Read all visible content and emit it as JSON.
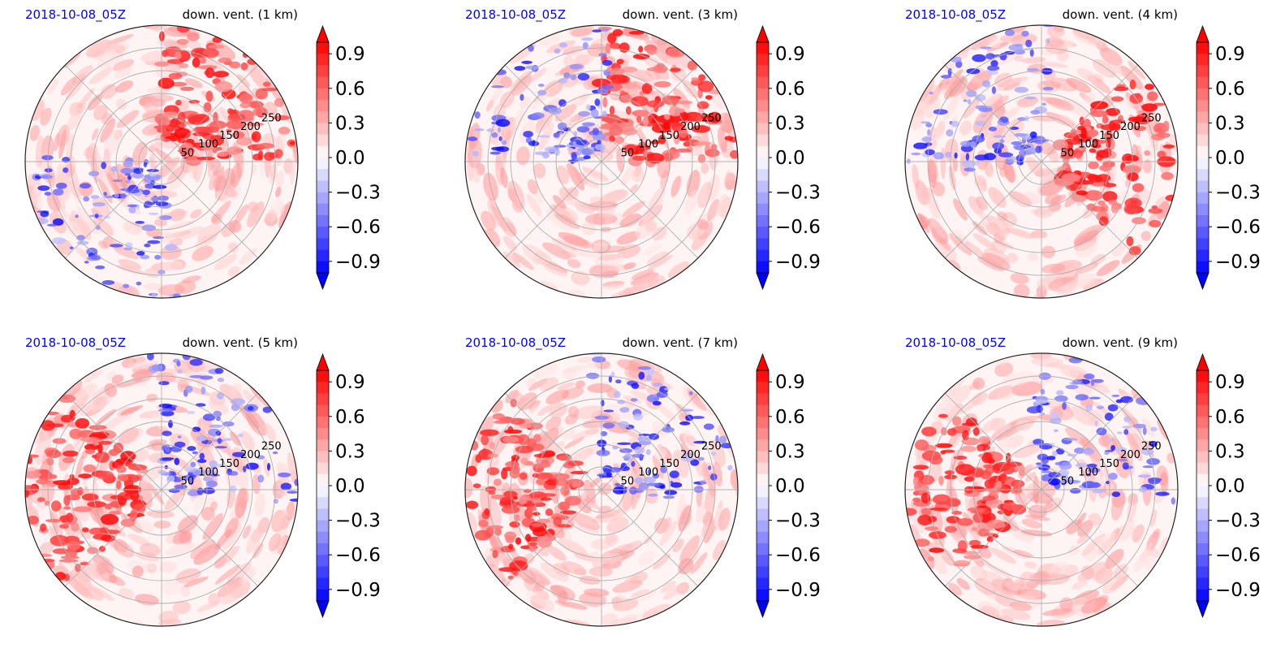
{
  "colors": {
    "positive": "#ff0000",
    "negative": "#0000ff",
    "date_title": "#0000ff",
    "grid": "#b0b0b0"
  },
  "colorbar_ticks": [
    "0.9",
    "0.6",
    "0.3",
    "0.0",
    "−0.3",
    "−0.6",
    "−0.9"
  ],
  "chart_data": [
    {
      "type": "heatmap",
      "projection": "polar",
      "date": "2018-10-08_05Z",
      "title": "down. vent. (1 km)",
      "radial_ticks": [
        "50",
        "100",
        "150",
        "200",
        "250"
      ],
      "radial_max": 300,
      "theta_grid_deg": 45,
      "colorbar": {
        "min": -1.0,
        "max": 1.0,
        "ticks": [
          0.9,
          0.6,
          0.3,
          0.0,
          -0.3,
          -0.6,
          -0.9
        ],
        "extend": "both",
        "cmap": "bwr"
      },
      "dominant_positive_sector": "north-east",
      "dominant_negative_sector": "south-west"
    },
    {
      "type": "heatmap",
      "projection": "polar",
      "date": "2018-10-08_05Z",
      "title": "down. vent. (3 km)",
      "radial_ticks": [
        "50",
        "100",
        "150",
        "200",
        "250"
      ],
      "radial_max": 300,
      "theta_grid_deg": 45,
      "colorbar": {
        "min": -1.0,
        "max": 1.0,
        "ticks": [
          0.9,
          0.6,
          0.3,
          0.0,
          -0.3,
          -0.6,
          -0.9
        ],
        "extend": "both",
        "cmap": "bwr"
      },
      "dominant_positive_sector": "north-east",
      "dominant_negative_sector": "north-west"
    },
    {
      "type": "heatmap",
      "projection": "polar",
      "date": "2018-10-08_05Z",
      "title": "down. vent. (4 km)",
      "radial_ticks": [
        "50",
        "100",
        "150",
        "200",
        "250"
      ],
      "radial_max": 300,
      "theta_grid_deg": 45,
      "colorbar": {
        "min": -1.0,
        "max": 1.0,
        "ticks": [
          0.9,
          0.6,
          0.3,
          0.0,
          -0.3,
          -0.6,
          -0.9
        ],
        "extend": "both",
        "cmap": "bwr"
      },
      "dominant_positive_sector": "east",
      "dominant_negative_sector": "north-west"
    },
    {
      "type": "heatmap",
      "projection": "polar",
      "date": "2018-10-08_05Z",
      "title": "down. vent. (5 km)",
      "radial_ticks": [
        "50",
        "100",
        "150",
        "200",
        "250"
      ],
      "radial_max": 300,
      "theta_grid_deg": 45,
      "colorbar": {
        "min": -1.0,
        "max": 1.0,
        "ticks": [
          0.9,
          0.6,
          0.3,
          0.0,
          -0.3,
          -0.6,
          -0.9
        ],
        "extend": "both",
        "cmap": "bwr"
      },
      "dominant_positive_sector": "west",
      "dominant_negative_sector": "north-east"
    },
    {
      "type": "heatmap",
      "projection": "polar",
      "date": "2018-10-08_05Z",
      "title": "down. vent. (7 km)",
      "radial_ticks": [
        "50",
        "100",
        "150",
        "200",
        "250"
      ],
      "radial_max": 300,
      "theta_grid_deg": 45,
      "colorbar": {
        "min": -1.0,
        "max": 1.0,
        "ticks": [
          0.9,
          0.6,
          0.3,
          0.0,
          -0.3,
          -0.6,
          -0.9
        ],
        "extend": "both",
        "cmap": "bwr"
      },
      "dominant_positive_sector": "west",
      "dominant_negative_sector": "north-east"
    },
    {
      "type": "heatmap",
      "projection": "polar",
      "date": "2018-10-08_05Z",
      "title": "down. vent. (9 km)",
      "radial_ticks": [
        "50",
        "100",
        "150",
        "200",
        "250"
      ],
      "radial_max": 300,
      "theta_grid_deg": 45,
      "colorbar": {
        "min": -1.0,
        "max": 1.0,
        "ticks": [
          0.9,
          0.6,
          0.3,
          0.0,
          -0.3,
          -0.6,
          -0.9
        ],
        "extend": "both",
        "cmap": "bwr"
      },
      "dominant_positive_sector": "west",
      "dominant_negative_sector": "north-east"
    }
  ]
}
